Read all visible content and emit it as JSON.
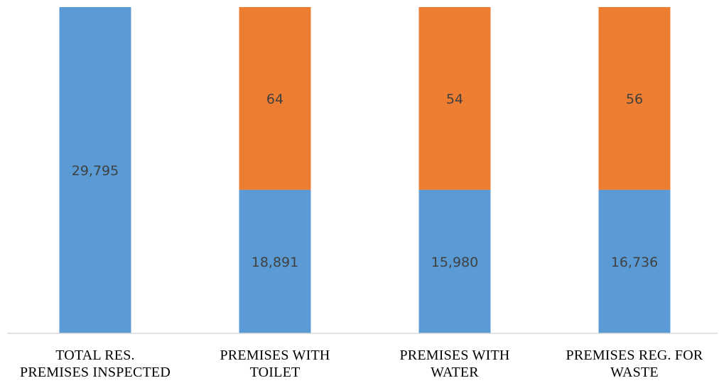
{
  "chart_data": {
    "type": "bar",
    "stacked": true,
    "normalized_to_100_percent": true,
    "categories": [
      [
        "TOTAL RES.",
        "PREMISES INSPECTED"
      ],
      [
        "PREMISES WITH",
        "TOILET"
      ],
      [
        "PREMISES WITH",
        "WATER"
      ],
      [
        "PREMISES REG. FOR",
        "WASTE"
      ]
    ],
    "series": [
      {
        "color": "#5B9BD5",
        "values": [
          29795,
          18891,
          15980,
          16736
        ],
        "labels": [
          "29,795",
          "18,891",
          "15,980",
          "16,736"
        ]
      },
      {
        "color": "#ED7D31",
        "values": [
          0,
          64,
          54,
          56
        ],
        "labels": [
          "",
          "64",
          "54",
          "56"
        ]
      }
    ],
    "split_fraction_bottom": [
      1.0,
      0.44,
      0.44,
      0.44
    ],
    "title": "",
    "xlabel": "",
    "ylabel": "",
    "grid": false,
    "legend": "none",
    "axis_line_color": "#D9D9D9"
  }
}
